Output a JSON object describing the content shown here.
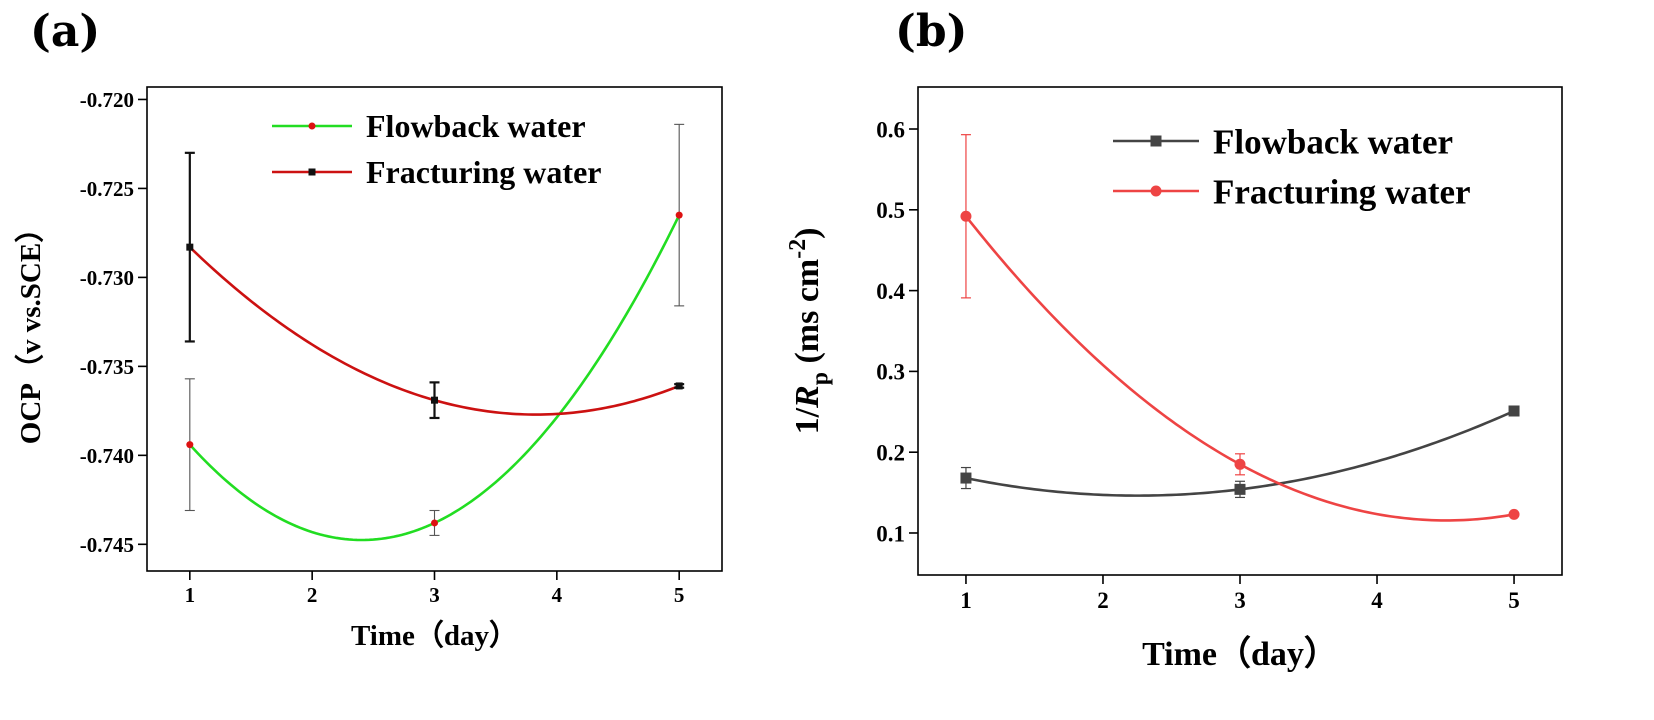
{
  "chart_data": [
    {
      "panel": "(a)",
      "type": "line",
      "title": "",
      "xlabel": "Time（day）",
      "ylabel": "OCP（v vs.SCE）",
      "xlim": [
        0.65,
        5.35
      ],
      "ylim": [
        -0.7465,
        -0.7193
      ],
      "x_ticks": [
        1,
        2,
        3,
        4,
        5
      ],
      "x_tick_labels": [
        "1",
        "2",
        "3",
        "4",
        "5"
      ],
      "y_ticks": [
        -0.745,
        -0.74,
        -0.735,
        -0.73,
        -0.725,
        -0.72
      ],
      "y_tick_labels": [
        "-0.745",
        "-0.740",
        "-0.735",
        "-0.730",
        "-0.725",
        "-0.720"
      ],
      "legend_position": "top-right",
      "series": [
        {
          "name": "Flowback water",
          "color": "#22dd22",
          "marker": "circle",
          "marker_color": "#dd1111",
          "x": [
            1,
            3,
            5
          ],
          "values": [
            -0.7394,
            -0.7438,
            -0.7265
          ],
          "error": [
            0.0037,
            0.0007,
            0.0051
          ]
        },
        {
          "name": "Fracturing water",
          "color": "#cc1111",
          "marker": "square",
          "marker_color": "#111111",
          "x": [
            1,
            3,
            5
          ],
          "values": [
            -0.7283,
            -0.7369,
            -0.7361
          ],
          "error": [
            0.0053,
            0.001,
            0.0001
          ]
        }
      ]
    },
    {
      "panel": "(b)",
      "type": "line",
      "title": "",
      "xlabel": "Time（day）",
      "ylabel": "1/Rp (ms cm-2)",
      "ylabel_parts": {
        "prefix": "1/",
        "var": "R",
        "sub": "p",
        "unit": " (ms cm",
        "sup": "-2",
        "close": ")"
      },
      "xlim": [
        0.65,
        5.35
      ],
      "ylim": [
        0.048,
        0.652
      ],
      "x_ticks": [
        1,
        2,
        3,
        4,
        5
      ],
      "x_tick_labels": [
        "1",
        "2",
        "3",
        "4",
        "5"
      ],
      "y_ticks": [
        0.1,
        0.2,
        0.3,
        0.4,
        0.5,
        0.6
      ],
      "y_tick_labels": [
        "0.1",
        "0.2",
        "0.3",
        "0.4",
        "0.5",
        "0.6"
      ],
      "legend_position": "top-right",
      "series": [
        {
          "name": "Flowback water",
          "color": "#444444",
          "marker": "square",
          "marker_color": "#444444",
          "x": [
            1,
            3,
            5
          ],
          "values": [
            0.168,
            0.154,
            0.251
          ],
          "error": [
            0.013,
            0.01,
            0.006
          ]
        },
        {
          "name": "Fracturing water",
          "color": "#ee4444",
          "marker": "circle",
          "marker_color": "#ee4444",
          "x": [
            1,
            3,
            5
          ],
          "values": [
            0.492,
            0.185,
            0.123
          ],
          "error": [
            0.101,
            0.013,
            0.002
          ]
        }
      ]
    }
  ]
}
